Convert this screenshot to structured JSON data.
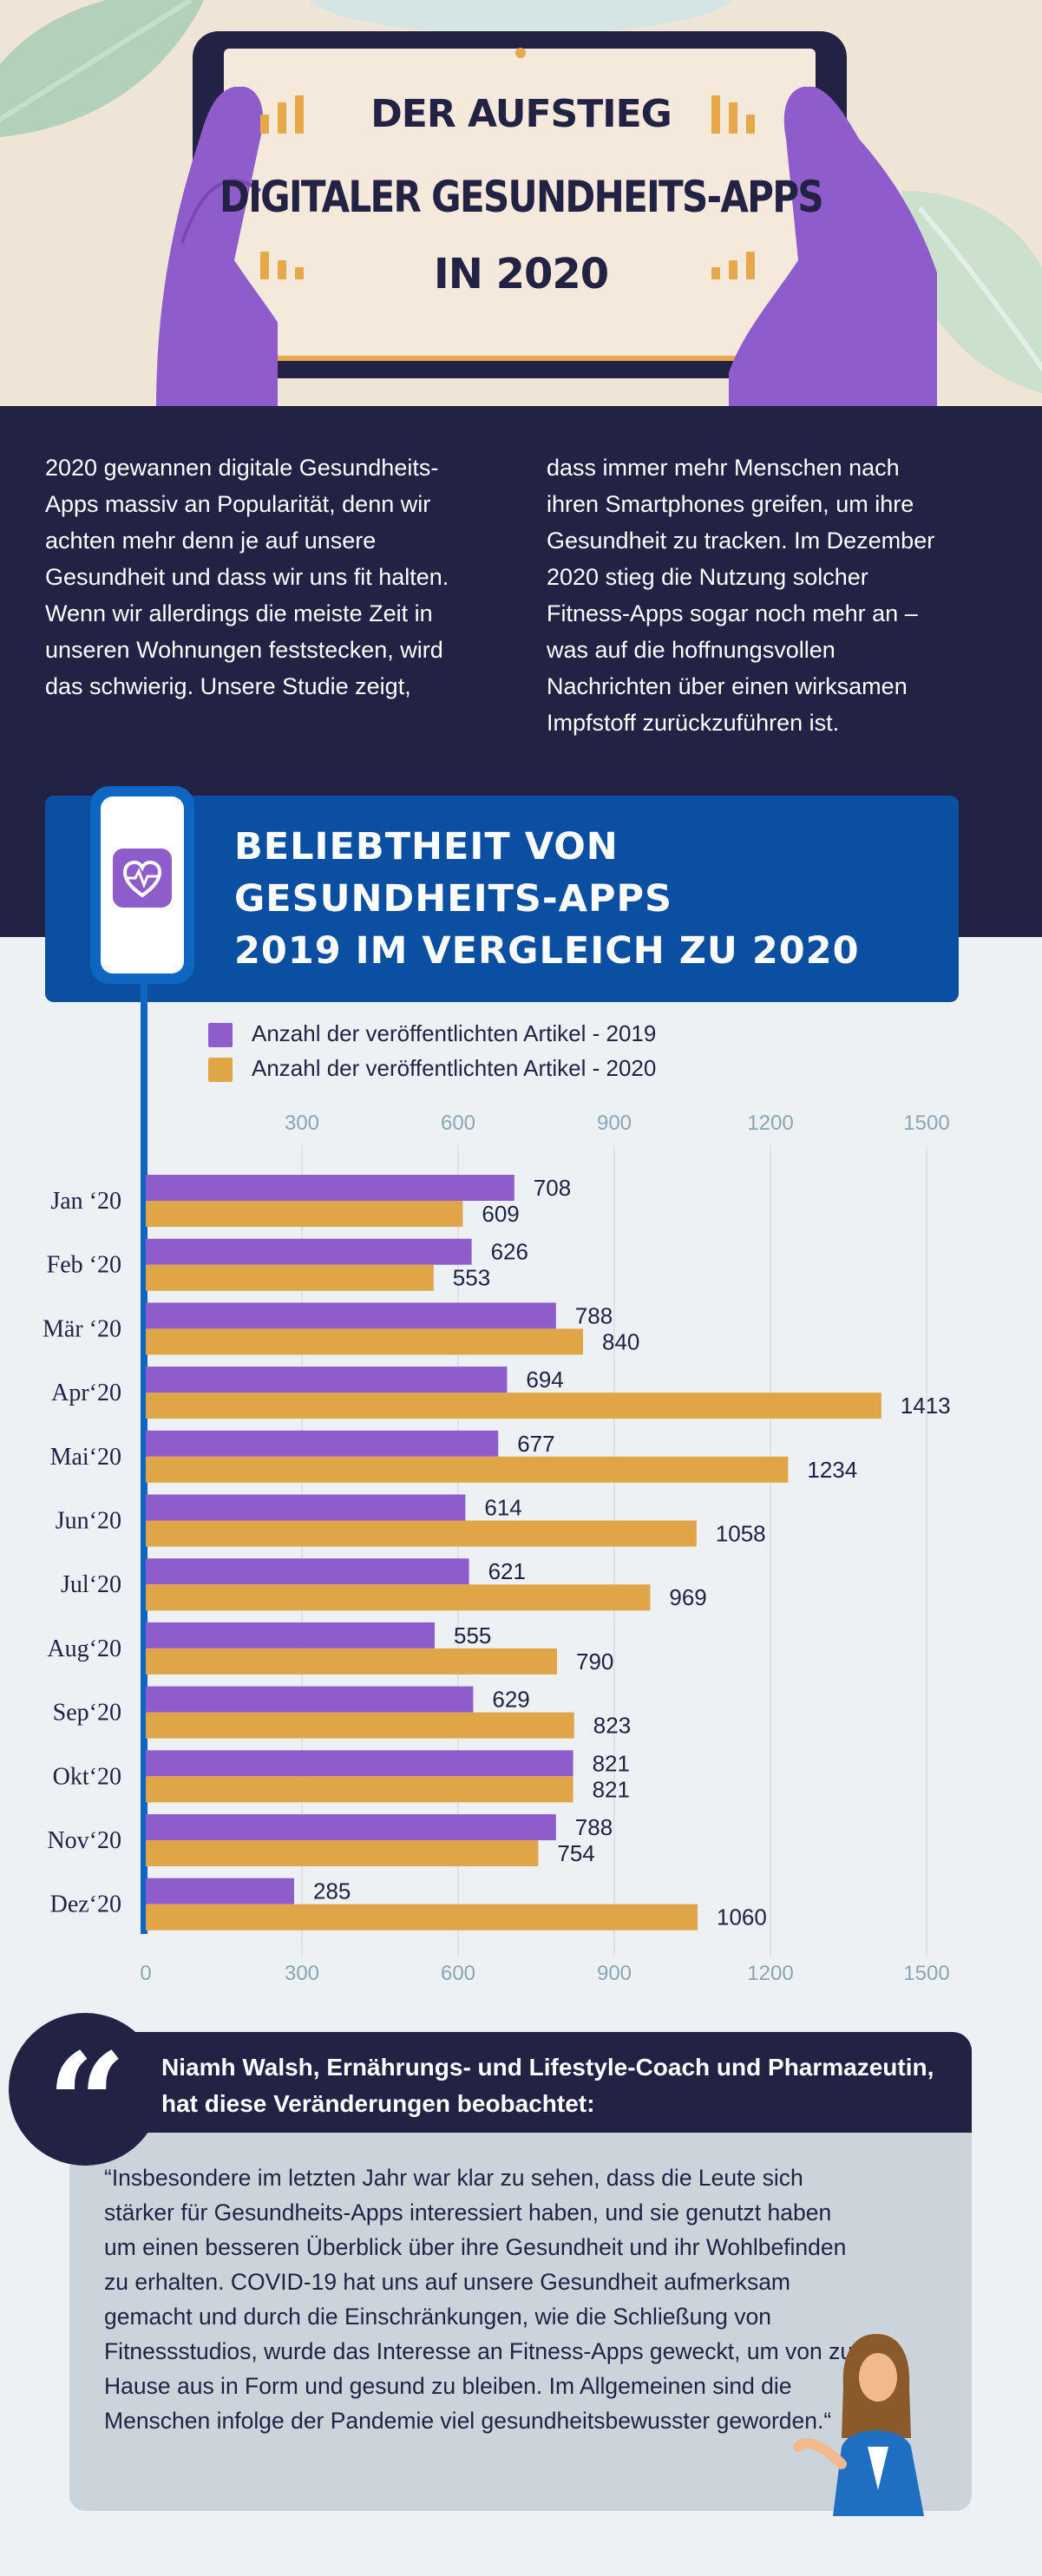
{
  "header": {
    "title_line1": "DER AUFSTIEG",
    "title_line2": "DIGITALER GESUNDHEITS-APPS",
    "title_line3": "IN 2020"
  },
  "intro": {
    "left": "2020 gewannen digitale Gesundheits-Apps massiv an Popularität, denn wir achten mehr denn je auf unsere Gesundheit und dass wir uns fit halten. Wenn wir allerdings die meiste Zeit in unseren Wohnungen feststecken, wird das schwierig. Unsere Studie zeigt,",
    "right": "dass immer mehr Menschen nach ihren Smartphones greifen, um ihre Gesundheit zu tracken. Im Dezember 2020 stieg die Nutzung solcher Fitness-Apps sogar noch mehr an – was auf die hoffnungsvollen Nachrichten über einen wirksamen Impfstoff zurückzuführen ist."
  },
  "chart_banner": {
    "line1": "BELIEBTHEIT VON",
    "line2": "GESUNDHEITS-APPS",
    "line3": "2019 IM VERGLEICH ZU 2020",
    "app_icon": "heart-pulse-icon"
  },
  "colors": {
    "navy": "#222244",
    "blue": "#0b4fa3",
    "purple": "#8e5ccb",
    "orange": "#e0a546"
  },
  "chart_data": {
    "type": "bar",
    "orientation": "horizontal",
    "title": "BELIEBTHEIT VON GESUNDHEITS-APPS 2019 IM VERGLEICH ZU 2020",
    "categories": [
      "Jan ‘20",
      "Feb ‘20",
      "Mär ‘20",
      "Apr‘20",
      "Mai‘20",
      "Jun‘20",
      "Jul‘20",
      "Aug‘20",
      "Sep‘20",
      "Okt‘20",
      "Nov‘20",
      "Dez‘20"
    ],
    "series": [
      {
        "name": "Anzahl der veröffentlichten Artikel - 2019",
        "color": "#8e5ccb",
        "values": [
          708,
          626,
          788,
          694,
          677,
          614,
          621,
          555,
          629,
          821,
          788,
          285
        ]
      },
      {
        "name": "Anzahl der veröffentlichten Artikel - 2020",
        "color": "#e0a546",
        "values": [
          609,
          553,
          840,
          1413,
          1234,
          1058,
          969,
          790,
          823,
          821,
          754,
          1060
        ]
      }
    ],
    "top_ticks": [
      300,
      600,
      900,
      1200,
      1500
    ],
    "bottom_ticks": [
      0,
      300,
      600,
      900,
      1200,
      1500
    ],
    "xlim": [
      0,
      1500
    ],
    "grid": true,
    "legend_position": "top"
  },
  "quote": {
    "header": "Niamh Walsh, Ernährungs- und Lifestyle-Coach und Pharmazeutin, hat diese Veränderungen beobachtet:",
    "mark": "“",
    "text": "“Insbesondere im letzten Jahr war klar zu sehen, dass die Leute sich stärker für Gesundheits-Apps interessiert haben, und sie genutzt haben um einen besseren Überblick über ihre Gesundheit und ihr Wohlbefinden zu erhalten. COVID-19 hat uns auf unsere Gesundheit aufmerksam gemacht und durch die Einschränkungen, wie die Schließung von Fitnessstudios, wurde das Interesse an Fitness-Apps geweckt, um von zu Hause aus in Form und gesund zu bleiben. Im Allgemeinen sind die Menschen infolge der Pandemie viel gesundheitsbewusster geworden.“"
  }
}
